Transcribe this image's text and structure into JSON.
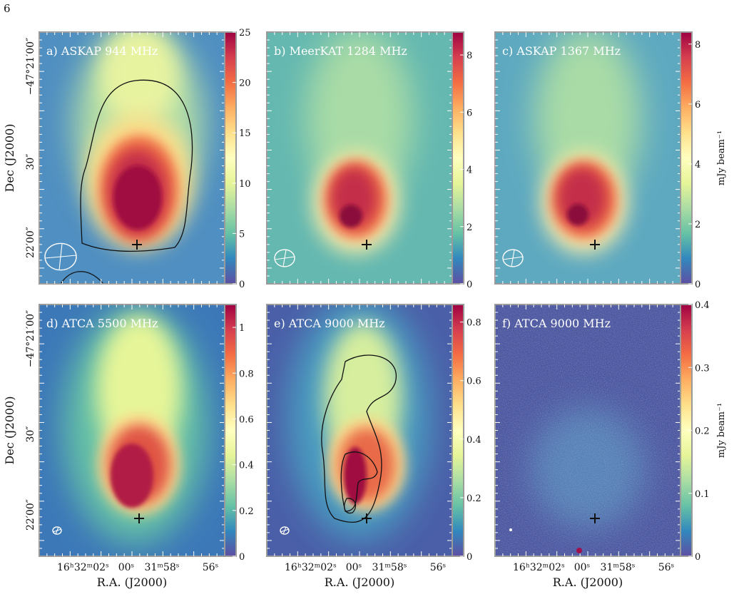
{
  "page_number": "6",
  "caption_fragment": "",
  "chart_data": [
    {
      "type": "heatmap",
      "title": "a) ASKAP 944 MHz",
      "colorbar": {
        "ticks": [
          0,
          5,
          10,
          15,
          20,
          25
        ],
        "vmax": 25,
        "label": ""
      },
      "dec_tick_labels": [
        "−47°21′00″",
        "30″",
        "22′00″"
      ],
      "ylabel": "Dec (J2000)",
      "xlabel": "",
      "ra_tick_labels": [],
      "contours": 1,
      "beam": "large"
    },
    {
      "type": "heatmap",
      "title": "b) MeerKAT 1284 MHz",
      "colorbar": {
        "ticks": [
          0,
          2,
          4,
          6,
          8
        ],
        "vmax": 8.8,
        "label": ""
      },
      "dec_tick_labels": [],
      "ylabel": "",
      "xlabel": "",
      "ra_tick_labels": [],
      "contours": 0,
      "beam": "medium"
    },
    {
      "type": "heatmap",
      "title": "c) ASKAP 1367 MHz",
      "colorbar": {
        "ticks": [
          0,
          2,
          4,
          6,
          8
        ],
        "vmax": 8.4,
        "label": "mJy beam⁻¹"
      },
      "dec_tick_labels": [],
      "ylabel": "",
      "xlabel": "",
      "ra_tick_labels": [],
      "contours": 0,
      "beam": "medium"
    },
    {
      "type": "heatmap",
      "title": "d) ATCA 5500 MHz",
      "colorbar": {
        "ticks": [
          0,
          0.2,
          0.4,
          0.6,
          0.8,
          1.0
        ],
        "vmax": 1.1,
        "label": ""
      },
      "dec_tick_labels": [
        "−47°21′00″",
        "30″",
        "22′00″"
      ],
      "ylabel": "Dec (J2000)",
      "xlabel": "R.A. (J2000)",
      "ra_tick_labels": [
        "16ʰ32ᵐ02ˢ",
        "00ˢ",
        "31ᵐ58ˢ",
        "56ˢ"
      ],
      "contours": 0,
      "beam": "small"
    },
    {
      "type": "heatmap",
      "title": "e) ATCA 9000 MHz",
      "colorbar": {
        "ticks": [
          0,
          0.2,
          0.4,
          0.6,
          0.8
        ],
        "vmax": 0.86,
        "label": ""
      },
      "dec_tick_labels": [],
      "ylabel": "",
      "xlabel": "R.A. (J2000)",
      "ra_tick_labels": [
        "16ʰ32ᵐ02ˢ",
        "00ˢ",
        "31ᵐ58ˢ",
        "56ˢ"
      ],
      "contours": 3,
      "beam": "small"
    },
    {
      "type": "heatmap",
      "title": "f) ATCA 9000 MHz",
      "colorbar": {
        "ticks": [
          0,
          0.1,
          0.2,
          0.3,
          0.4
        ],
        "vmax": 0.4,
        "label": "mJy beam⁻¹"
      },
      "dec_tick_labels": [],
      "ylabel": "",
      "xlabel": "R.A. (J2000)",
      "ra_tick_labels": [
        "16ʰ32ᵐ02ˢ",
        "00ˢ",
        "31ᵐ58ˢ",
        "56ˢ"
      ],
      "contours": 0,
      "beam": "dot"
    }
  ]
}
